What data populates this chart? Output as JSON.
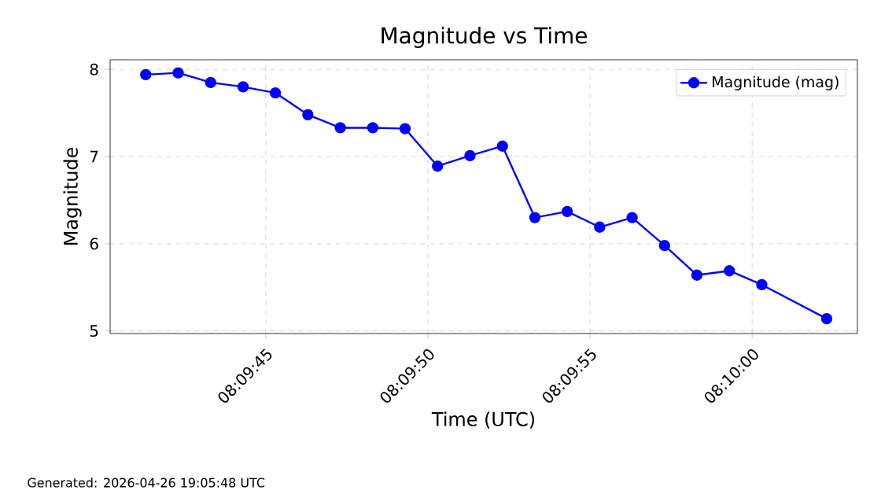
{
  "chart_data": {
    "type": "line",
    "title": "Magnitude vs Time",
    "xlabel": "Time (UTC)",
    "ylabel": "Magnitude",
    "annotations": [
      "Generated: 2026-04-26 19:05:48 UTC"
    ],
    "x": [
      8.161472,
      8.16175,
      8.162028,
      8.162306,
      8.162583,
      8.162861,
      8.163139,
      8.163417,
      8.163694,
      8.163972,
      8.16425,
      8.164528,
      8.164806,
      8.165083,
      8.165361,
      8.165639,
      8.165917,
      8.166194,
      8.166472,
      8.16675,
      8.167306
    ],
    "series": [
      {
        "name": "Magnitude (mag)",
        "color": "#0000ff",
        "values": [
          7.94,
          7.96,
          7.85,
          7.8,
          7.73,
          7.48,
          7.33,
          7.33,
          7.32,
          6.89,
          7.01,
          7.12,
          6.3,
          6.37,
          6.19,
          6.3,
          5.98,
          5.64,
          5.69,
          5.53,
          5.14
        ]
      }
    ],
    "xlim": [
      8.161167,
      8.167569
    ],
    "ylim": [
      4.97,
      8.11
    ],
    "xticks": [
      {
        "value": 8.1625,
        "label": "08:09:45"
      },
      {
        "value": 8.163889,
        "label": "08:09:50"
      },
      {
        "value": 8.165278,
        "label": "08:09:55"
      },
      {
        "value": 8.166667,
        "label": "08:10:00"
      }
    ],
    "yticks": [
      5,
      6,
      7,
      8
    ],
    "grid": true,
    "legend": "top right",
    "marker": "circle",
    "line_style": "solid"
  }
}
